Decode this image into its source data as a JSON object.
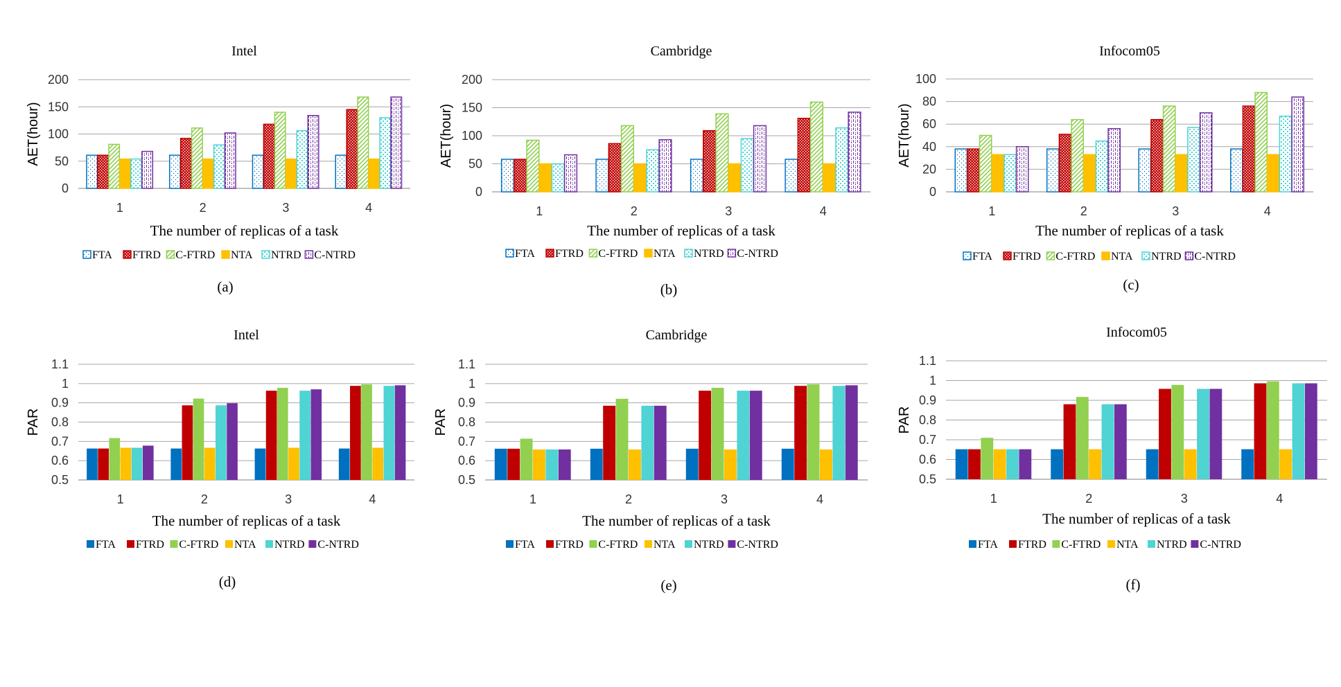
{
  "colors": {
    "FTA": "#0070C0",
    "FTRD": "#C00000",
    "C-FTRD": "#92D050",
    "NTA": "#FFC000",
    "NTRD": "#4FD3D3",
    "C-NTRD": "#7030A0",
    "grid": "#a6a6a6",
    "axis": "#7f7f7f"
  },
  "chart_data": [
    {
      "type": "bar",
      "panel": "(a)",
      "title": "Intel",
      "xlabel": "The number of replicas of a task",
      "ylabel": "AET(hour)",
      "ylim": [
        0,
        200
      ],
      "yticks": [
        "0",
        "50",
        "100",
        "150",
        "200"
      ],
      "categories": [
        "1",
        "2",
        "3",
        "4"
      ],
      "style": "pattern",
      "legend_position": "bottom",
      "series": [
        {
          "name": "FTA",
          "values": [
            61,
            61,
            61,
            61
          ]
        },
        {
          "name": "FTRD",
          "values": [
            61,
            92,
            118,
            145
          ]
        },
        {
          "name": "C-FTRD",
          "values": [
            81,
            111,
            140,
            168
          ]
        },
        {
          "name": "NTA",
          "values": [
            54,
            54,
            54,
            54
          ]
        },
        {
          "name": "NTRD",
          "values": [
            54,
            80,
            106,
            130
          ]
        },
        {
          "name": "C-NTRD",
          "values": [
            68,
            102,
            134,
            168
          ]
        }
      ]
    },
    {
      "type": "bar",
      "panel": "(b)",
      "title": "Cambridge",
      "xlabel": "The number of replicas of a task",
      "ylabel": "AET(hour)",
      "ylim": [
        0,
        200
      ],
      "yticks": [
        "0",
        "50",
        "100",
        "150",
        "200"
      ],
      "categories": [
        "1",
        "2",
        "3",
        "4"
      ],
      "style": "pattern",
      "legend_position": "bottom",
      "series": [
        {
          "name": "FTA",
          "values": [
            58,
            58,
            58,
            58
          ]
        },
        {
          "name": "FTRD",
          "values": [
            58,
            86,
            109,
            131
          ]
        },
        {
          "name": "C-FTRD",
          "values": [
            92,
            118,
            139,
            160
          ]
        },
        {
          "name": "NTA",
          "values": [
            50,
            50,
            50,
            50
          ]
        },
        {
          "name": "NTRD",
          "values": [
            50,
            75,
            95,
            114
          ]
        },
        {
          "name": "C-NTRD",
          "values": [
            66,
            93,
            118,
            142
          ]
        }
      ]
    },
    {
      "type": "bar",
      "panel": "(c)",
      "title": "Infocom05",
      "xlabel": "The number of replicas of a task",
      "ylabel": "AET(hour)",
      "ylim": [
        0,
        100
      ],
      "yticks": [
        "0",
        "20",
        "40",
        "60",
        "80",
        "100"
      ],
      "categories": [
        "1",
        "2",
        "3",
        "4"
      ],
      "style": "pattern",
      "legend_position": "bottom",
      "series": [
        {
          "name": "FTA",
          "values": [
            38,
            38,
            38,
            38
          ]
        },
        {
          "name": "FTRD",
          "values": [
            38,
            51,
            64,
            76
          ]
        },
        {
          "name": "C-FTRD",
          "values": [
            50,
            64,
            76,
            88
          ]
        },
        {
          "name": "NTA",
          "values": [
            33,
            33,
            33,
            33
          ]
        },
        {
          "name": "NTRD",
          "values": [
            33,
            45,
            57,
            67
          ]
        },
        {
          "name": "C-NTRD",
          "values": [
            40,
            56,
            70,
            84
          ]
        }
      ]
    },
    {
      "type": "bar",
      "panel": "(d)",
      "title": "Intel",
      "xlabel": "The number of replicas of a task",
      "ylabel": "PAR",
      "ylim": [
        0.5,
        1.1
      ],
      "yticks": [
        "0.5",
        "0.6",
        "0.7",
        "0.8",
        "0.9",
        "1",
        "1.1"
      ],
      "categories": [
        "1",
        "2",
        "3",
        "4"
      ],
      "style": "solid",
      "legend_position": "bottom",
      "series": [
        {
          "name": "FTA",
          "values": [
            0.663,
            0.663,
            0.663,
            0.663
          ]
        },
        {
          "name": "FTRD",
          "values": [
            0.663,
            0.887,
            0.963,
            0.988
          ]
        },
        {
          "name": "C-FTRD",
          "values": [
            0.717,
            0.922,
            0.978,
            0.996
          ]
        },
        {
          "name": "NTA",
          "values": [
            0.667,
            0.667,
            0.667,
            0.667
          ]
        },
        {
          "name": "NTRD",
          "values": [
            0.667,
            0.887,
            0.963,
            0.988
          ]
        },
        {
          "name": "C-NTRD",
          "values": [
            0.678,
            0.898,
            0.97,
            0.991
          ]
        }
      ]
    },
    {
      "type": "bar",
      "panel": "(e)",
      "title": "Cambridge",
      "xlabel": "The number of replicas of a task",
      "ylabel": "PAR",
      "ylim": [
        0.5,
        1.1
      ],
      "yticks": [
        "0.5",
        "0.6",
        "0.7",
        "0.8",
        "0.9",
        "1",
        "1.1"
      ],
      "categories": [
        "1",
        "2",
        "3",
        "4"
      ],
      "style": "solid",
      "legend_position": "bottom",
      "series": [
        {
          "name": "FTA",
          "values": [
            0.662,
            0.662,
            0.662,
            0.662
          ]
        },
        {
          "name": "FTRD",
          "values": [
            0.662,
            0.885,
            0.963,
            0.988
          ]
        },
        {
          "name": "C-FTRD",
          "values": [
            0.714,
            0.921,
            0.978,
            0.996
          ]
        },
        {
          "name": "NTA",
          "values": [
            0.658,
            0.658,
            0.658,
            0.658
          ]
        },
        {
          "name": "NTRD",
          "values": [
            0.658,
            0.885,
            0.963,
            0.988
          ]
        },
        {
          "name": "C-NTRD",
          "values": [
            0.658,
            0.885,
            0.963,
            0.991
          ]
        }
      ]
    },
    {
      "type": "bar",
      "panel": "(f)",
      "title": "Infocom05",
      "xlabel": "The number of replicas of a task",
      "ylabel": "PAR",
      "ylim": [
        0.5,
        1.1
      ],
      "yticks": [
        "0.5",
        "0.6",
        "0.7",
        "0.8",
        "0.9",
        "1",
        "1.1"
      ],
      "categories": [
        "1",
        "2",
        "3",
        "4"
      ],
      "style": "solid",
      "legend_position": "bottom",
      "series": [
        {
          "name": "FTA",
          "values": [
            0.652,
            0.652,
            0.652,
            0.652
          ]
        },
        {
          "name": "FTRD",
          "values": [
            0.652,
            0.88,
            0.958,
            0.986
          ]
        },
        {
          "name": "C-FTRD",
          "values": [
            0.71,
            0.917,
            0.978,
            0.996
          ]
        },
        {
          "name": "NTA",
          "values": [
            0.652,
            0.652,
            0.652,
            0.652
          ]
        },
        {
          "name": "NTRD",
          "values": [
            0.652,
            0.88,
            0.958,
            0.986
          ]
        },
        {
          "name": "C-NTRD",
          "values": [
            0.652,
            0.88,
            0.958,
            0.986
          ]
        }
      ]
    }
  ]
}
